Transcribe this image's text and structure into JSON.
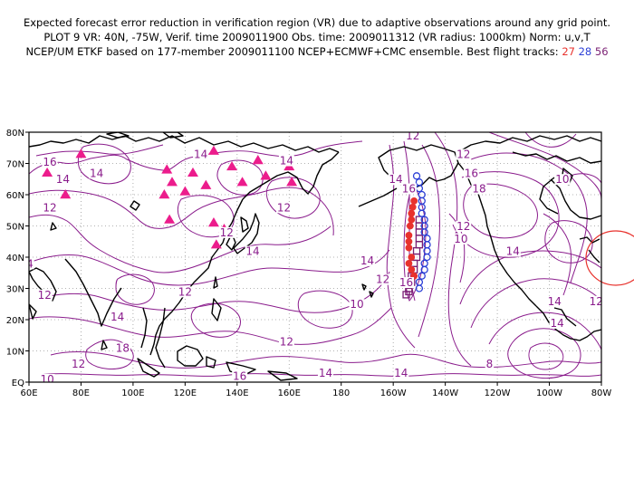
{
  "titles": {
    "line1": "Expected forecast error reduction in verification region (VR) due to adaptive observations around any grid point.",
    "line2": "PLOT 9 VR: 40N, -75W, Verif. time 2009011900 Obs. time: 2009011312 (VR radius: 1000km) Norm: u,v,T",
    "line3_prefix": "NCEP/UM ETKF based on 177-member 2009011100 NCEP+ECMWF+CMC ensemble. Best flight tracks:",
    "track_a": "27",
    "track_b": "28",
    "track_c": "56"
  },
  "axes": {
    "lat_labels": [
      "80N",
      "70N",
      "60N",
      "50N",
      "40N",
      "30N",
      "20N",
      "10N",
      "EQ"
    ],
    "lon_labels": [
      "60E",
      "80E",
      "100E",
      "120E",
      "140E",
      "160E",
      "180",
      "160W",
      "140W",
      "120W",
      "100W",
      "80W"
    ]
  },
  "contour_labels": [
    {
      "t": "12",
      "lon": -152.5,
      "lat": 78
    },
    {
      "t": "12",
      "lon": -133,
      "lat": 72
    },
    {
      "t": "16",
      "lon": 68,
      "lat": 69.5
    },
    {
      "t": "14",
      "lon": 73,
      "lat": 64
    },
    {
      "t": "14",
      "lon": 86,
      "lat": 66
    },
    {
      "t": "12",
      "lon": 68,
      "lat": 55
    },
    {
      "t": "14",
      "lon": 59,
      "lat": 37
    },
    {
      "t": "12",
      "lon": 66,
      "lat": 27
    },
    {
      "t": "14",
      "lon": 126,
      "lat": 72
    },
    {
      "t": "14",
      "lon": 159,
      "lat": 70
    },
    {
      "t": "12",
      "lon": 158,
      "lat": 55
    },
    {
      "t": "12",
      "lon": 136,
      "lat": 47
    },
    {
      "t": "14",
      "lon": 146,
      "lat": 41
    },
    {
      "t": "12",
      "lon": 120,
      "lat": 28
    },
    {
      "t": "14",
      "lon": 94,
      "lat": 20
    },
    {
      "t": "18",
      "lon": 96,
      "lat": 10
    },
    {
      "t": "12",
      "lon": 79,
      "lat": 5
    },
    {
      "t": "10",
      "lon": 67,
      "lat": 0
    },
    {
      "t": "16",
      "lon": 141,
      "lat": 1
    },
    {
      "t": "12",
      "lon": 159,
      "lat": 12
    },
    {
      "t": "14",
      "lon": 174,
      "lat": 2
    },
    {
      "t": "10",
      "lon": -174,
      "lat": 24
    },
    {
      "t": "12",
      "lon": -164,
      "lat": 32
    },
    {
      "t": "14",
      "lon": -170,
      "lat": 38
    },
    {
      "t": "14",
      "lon": -157,
      "lat": 2
    },
    {
      "t": "14",
      "lon": -159,
      "lat": 64
    },
    {
      "t": "16",
      "lon": -154,
      "lat": 61
    },
    {
      "t": "16",
      "lon": -155,
      "lat": 31
    },
    {
      "t": "18",
      "lon": -127,
      "lat": 61
    },
    {
      "t": "16",
      "lon": -130,
      "lat": 66
    },
    {
      "t": "12",
      "lon": -133,
      "lat": 49
    },
    {
      "t": "10",
      "lon": -134,
      "lat": 45
    },
    {
      "t": "14",
      "lon": -114,
      "lat": 41
    },
    {
      "t": "10",
      "lon": -95,
      "lat": 64
    },
    {
      "t": "14",
      "lon": -98,
      "lat": 25
    },
    {
      "t": "14",
      "lon": -97,
      "lat": 18
    },
    {
      "t": "8",
      "lon": -123,
      "lat": 5
    },
    {
      "t": "12",
      "lon": -82,
      "lat": 25
    }
  ],
  "observation_triangles": [
    [
      67,
      67
    ],
    [
      74,
      60
    ],
    [
      80,
      73
    ],
    [
      113,
      68
    ],
    [
      112,
      60
    ],
    [
      114,
      52
    ],
    [
      115,
      64
    ],
    [
      120,
      61
    ],
    [
      123,
      67
    ],
    [
      128,
      63
    ],
    [
      131,
      74
    ],
    [
      131,
      51
    ],
    [
      132,
      44
    ],
    [
      135,
      49
    ],
    [
      138,
      69
    ],
    [
      142,
      64
    ],
    [
      148,
      71
    ],
    [
      151,
      66
    ],
    [
      160,
      69
    ],
    [
      161,
      64
    ]
  ],
  "tracks": {
    "t27": [
      [
        -154,
        43
      ],
      [
        -154,
        45
      ],
      [
        -154,
        47
      ],
      [
        -153.5,
        50
      ],
      [
        -153,
        52
      ],
      [
        -153,
        54
      ],
      [
        -152.5,
        56
      ],
      [
        -152,
        58
      ],
      [
        -153,
        40
      ],
      [
        -154,
        38
      ],
      [
        -153,
        36
      ],
      [
        -152,
        34
      ]
    ],
    "t28": [
      [
        -151,
        66
      ],
      [
        -150,
        64
      ],
      [
        -150,
        62
      ],
      [
        -149,
        60
      ],
      [
        -149,
        58
      ],
      [
        -149,
        56
      ],
      [
        -149,
        54
      ],
      [
        -148,
        52
      ],
      [
        -148,
        50
      ],
      [
        -148,
        48
      ],
      [
        -147,
        46
      ],
      [
        -147,
        44
      ],
      [
        -147,
        42
      ],
      [
        -147,
        40
      ],
      [
        -148,
        38
      ],
      [
        -148,
        36
      ],
      [
        -149,
        34
      ],
      [
        -150,
        32
      ],
      [
        -150,
        30
      ]
    ],
    "t56": [
      [
        -150,
        52
      ],
      [
        -150,
        50
      ],
      [
        -150,
        48
      ],
      [
        -150,
        46
      ],
      [
        -150,
        44
      ],
      [
        -151,
        42
      ],
      [
        -151,
        40
      ],
      [
        -152,
        38
      ],
      [
        -152,
        36
      ],
      [
        -153,
        34
      ],
      [
        -153,
        32
      ],
      [
        -154,
        30
      ],
      [
        -155,
        28
      ],
      [
        -154,
        29
      ]
    ]
  },
  "colors": {
    "contour": "#8a1c8c",
    "coast": "#000000",
    "grid": "#9a9a9a",
    "track27": "#e8322d",
    "track28": "#2b3fd6",
    "track56": "#7a1f73",
    "triangle": "#ec1c8c",
    "vr_circle": "#e8322d"
  }
}
